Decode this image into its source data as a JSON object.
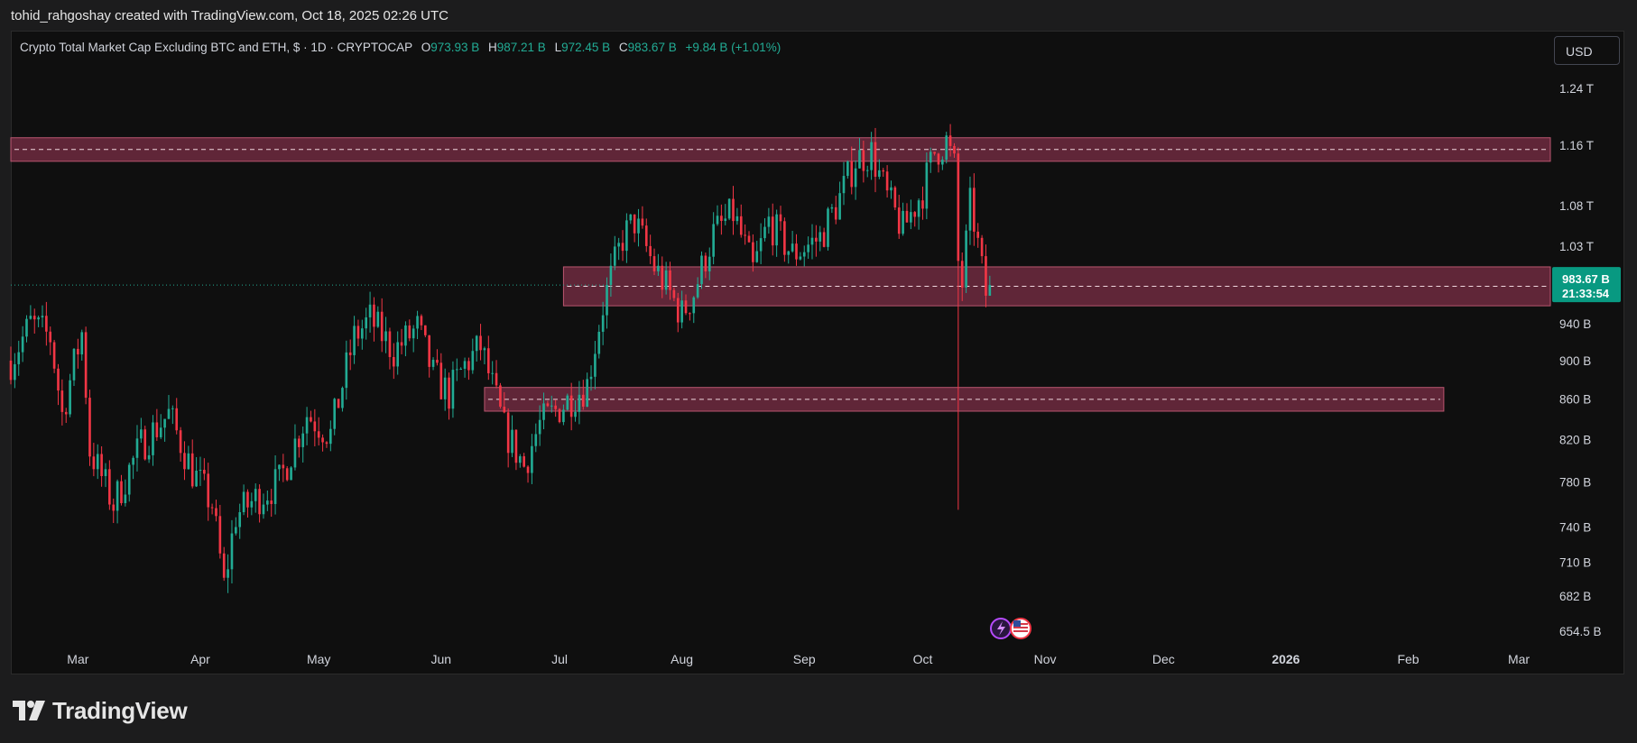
{
  "header": {
    "attribution": "tohid_rahgoshay created with TradingView.com, Oct 18, 2025 02:26 UTC"
  },
  "legend": {
    "title": "Crypto Total Market Cap Excluding BTC and ETH, $ · 1D · CRYPTOCAP",
    "open_label": "O",
    "open": "973.93 B",
    "high_label": "H",
    "high": "987.21 B",
    "low_label": "L",
    "low": "972.45 B",
    "close_label": "C",
    "close": "983.67 B",
    "change": "+9.84 B (+1.01%)"
  },
  "currency_button": "USD",
  "price_badge": {
    "price": "983.67 B",
    "countdown": "21:33:54"
  },
  "footer": {
    "brand": "TradingView"
  },
  "colors": {
    "up": "#22ab94",
    "down": "#f23645",
    "zone_fill": "#6f2a40",
    "zone_border": "#b9566f",
    "background": "#0f0f0f",
    "badge": "#089981"
  },
  "chart_data": {
    "type": "candlestick",
    "title": "Crypto Total Market Cap Excluding BTC and ETH, $ · 1D · CRYPTOCAP",
    "y_scale": "log",
    "y_ticks": [
      {
        "label": "1.24 T",
        "value": 1240
      },
      {
        "label": "1.16 T",
        "value": 1160
      },
      {
        "label": "1.08 T",
        "value": 1080
      },
      {
        "label": "1.03 T",
        "value": 1030
      },
      {
        "label": "940 B",
        "value": 940
      },
      {
        "label": "900 B",
        "value": 900
      },
      {
        "label": "860 B",
        "value": 860
      },
      {
        "label": "820 B",
        "value": 820
      },
      {
        "label": "780 B",
        "value": 780
      },
      {
        "label": "740 B",
        "value": 740
      },
      {
        "label": "710 B",
        "value": 710
      },
      {
        "label": "682 B",
        "value": 682
      },
      {
        "label": "654.5 B",
        "value": 654.5
      }
    ],
    "x_start": "2025-02-12",
    "x_end": "2026-03-09",
    "x_ticks": [
      {
        "label": "Mar",
        "date": "2025-03-01",
        "bold": false
      },
      {
        "label": "Apr",
        "date": "2025-04-01",
        "bold": false
      },
      {
        "label": "May",
        "date": "2025-05-01",
        "bold": false
      },
      {
        "label": "Jun",
        "date": "2025-06-01",
        "bold": false
      },
      {
        "label": "Jul",
        "date": "2025-07-01",
        "bold": false
      },
      {
        "label": "Aug",
        "date": "2025-08-01",
        "bold": false
      },
      {
        "label": "Sep",
        "date": "2025-09-01",
        "bold": false
      },
      {
        "label": "Oct",
        "date": "2025-10-01",
        "bold": false
      },
      {
        "label": "Nov",
        "date": "2025-11-01",
        "bold": false
      },
      {
        "label": "Dec",
        "date": "2025-12-01",
        "bold": false
      },
      {
        "label": "2026",
        "date": "2026-01-01",
        "bold": true
      },
      {
        "label": "Feb",
        "date": "2026-02-01",
        "bold": false
      },
      {
        "label": "Mar",
        "date": "2026-03-01",
        "bold": false
      }
    ],
    "anchors": [
      [
        "2025-02-12",
        900
      ],
      [
        "2025-02-17",
        940
      ],
      [
        "2025-02-22",
        925
      ],
      [
        "2025-02-25",
        845
      ],
      [
        "2025-03-02",
        930
      ],
      [
        "2025-03-04",
        810
      ],
      [
        "2025-03-10",
        760
      ],
      [
        "2025-03-17",
        815
      ],
      [
        "2025-03-24",
        845
      ],
      [
        "2025-03-30",
        790
      ],
      [
        "2025-04-04",
        760
      ],
      [
        "2025-04-07",
        690
      ],
      [
        "2025-04-10",
        750
      ],
      [
        "2025-04-15",
        765
      ],
      [
        "2025-04-21",
        780
      ],
      [
        "2025-04-28",
        845
      ],
      [
        "2025-05-04",
        825
      ],
      [
        "2025-05-10",
        925
      ],
      [
        "2025-05-14",
        945
      ],
      [
        "2025-05-20",
        910
      ],
      [
        "2025-05-26",
        935
      ],
      [
        "2025-05-30",
        885
      ],
      [
        "2025-06-03",
        865
      ],
      [
        "2025-06-07",
        895
      ],
      [
        "2025-06-11",
        915
      ],
      [
        "2025-06-17",
        830
      ],
      [
        "2025-06-22",
        795
      ],
      [
        "2025-06-26",
        835
      ],
      [
        "2025-07-02",
        855
      ],
      [
        "2025-07-08",
        875
      ],
      [
        "2025-07-12",
        960
      ],
      [
        "2025-07-17",
        1040
      ],
      [
        "2025-07-20",
        1060
      ],
      [
        "2025-07-25",
        1005
      ],
      [
        "2025-08-01",
        950
      ],
      [
        "2025-08-04",
        975
      ],
      [
        "2025-08-09",
        1045
      ],
      [
        "2025-08-14",
        1070
      ],
      [
        "2025-08-19",
        1000
      ],
      [
        "2025-08-23",
        1060
      ],
      [
        "2025-08-29",
        1020
      ],
      [
        "2025-09-05",
        1040
      ],
      [
        "2025-09-10",
        1090
      ],
      [
        "2025-09-14",
        1140
      ],
      [
        "2025-09-18",
        1150
      ],
      [
        "2025-09-22",
        1090
      ],
      [
        "2025-09-26",
        1050
      ],
      [
        "2025-10-01",
        1100
      ],
      [
        "2025-10-04",
        1150
      ],
      [
        "2025-10-07",
        1165
      ],
      [
        "2025-10-09",
        1130
      ],
      [
        "2025-10-10",
        1010
      ],
      [
        "2025-10-11",
        985
      ],
      [
        "2025-10-13",
        1080
      ],
      [
        "2025-10-14",
        1060
      ],
      [
        "2025-10-16",
        1000
      ],
      [
        "2025-10-17",
        974
      ],
      [
        "2025-10-18",
        983.67
      ]
    ],
    "crash_wick": {
      "date": "2025-10-10",
      "low": 755
    },
    "zones": [
      {
        "name": "upper",
        "start": "2025-02-12",
        "end": "2026-03-09",
        "low": 1138,
        "high": 1170
      },
      {
        "name": "middle",
        "start": "2025-07-02",
        "end": "2026-03-09",
        "low": 960,
        "high": 1005
      },
      {
        "name": "lower",
        "start": "2025-06-12",
        "end": "2026-02-10",
        "low": 848,
        "high": 872
      }
    ],
    "last_price": 983.67
  }
}
